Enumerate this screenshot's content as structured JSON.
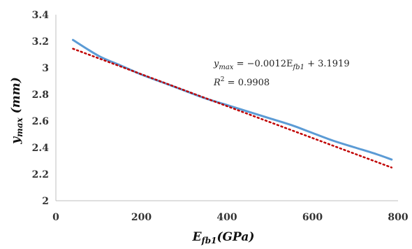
{
  "chart_data": {
    "type": "line",
    "title": "",
    "xlabel": {
      "main": "E",
      "sub": "fb1",
      "rest": "(GPa)"
    },
    "ylabel": {
      "main": "y",
      "sub": "max",
      "rest": " (mm)"
    },
    "xlim": [
      0,
      800
    ],
    "ylim": [
      2,
      3.4
    ],
    "x_ticks": [
      "0",
      "200",
      "400",
      "600",
      "800"
    ],
    "y_ticks": [
      "2",
      "2.2",
      "2.4",
      "2.6",
      "2.8",
      "3",
      "3.2",
      "3.4"
    ],
    "grid": false,
    "legend": "none",
    "series": [
      {
        "kind": "data",
        "color": "#5b9bd5",
        "x": [
          40,
          100,
          150,
          200,
          250,
          300,
          350,
          400,
          450,
          500,
          550,
          600,
          650,
          700,
          750,
          785
        ],
        "y": [
          3.21,
          3.09,
          3.02,
          2.95,
          2.89,
          2.83,
          2.77,
          2.72,
          2.67,
          2.62,
          2.57,
          2.51,
          2.45,
          2.4,
          2.35,
          2.31
        ]
      },
      {
        "kind": "linear-trendline",
        "color": "#c00000",
        "slope": -0.0012,
        "intercept": 3.1919,
        "x": [
          40,
          785
        ]
      }
    ],
    "annotations": {
      "equation": {
        "lhs_main": "y",
        "lhs_sub": "max",
        "eq_rest": " = −0.0012E",
        "rhs_sub": "fb1",
        "tail": " + 3.1919"
      },
      "r2": {
        "r": "R",
        "sup": "2",
        "tail": " = 0.9908"
      }
    }
  }
}
